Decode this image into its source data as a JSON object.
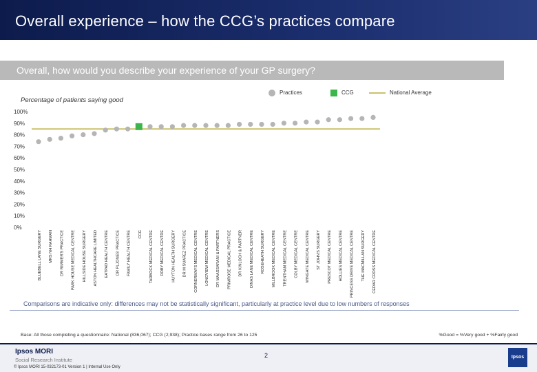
{
  "page": {
    "title": "Overall experience – how the CCG’s practices compare",
    "question": "Overall, how would you describe your experience of your GP surgery?",
    "subtitle": "Percentage of patients saying good",
    "comparisons_note": "Comparisons are indicative only: differences may not be statistically significant, particularly at practice level due to low numbers of responses",
    "base_note": "Base: All those completing a questionnaire: National (836,067); CCG (2,938); Practice bases range from 26 to 125",
    "good_definition": "%Good = %Very good + %Fairly good",
    "footer_logo": "Ipsos MORI",
    "footer_logo_sub": "Social Research Institute",
    "footer_copyright": "© Ipsos MORI 15-032173-01 Version 1 | Internal Use Only",
    "page_number": "2",
    "brand_badge": "Ipsos"
  },
  "legend": {
    "practices": "Practices",
    "ccg": "CCG",
    "national": "National Average"
  },
  "colors": {
    "practice": "#b5b5b5",
    "ccg": "#3cb54a",
    "national": "#c9c06a"
  },
  "chart_data": {
    "type": "scatter",
    "title": "Overall, how would you describe your experience of your GP surgery?",
    "ylabel": "Percentage of patients saying good",
    "ylim": [
      0,
      100
    ],
    "yticks": [
      0,
      10,
      20,
      30,
      40,
      50,
      60,
      70,
      80,
      90,
      100
    ],
    "national_average": 85,
    "categories": [
      "BLUEBELL LANE SURGERY",
      "MRS NH RAHMAN",
      "DR RIMMER'S PRACTICE",
      "PARK HOUSE MEDICAL CENTRE",
      "HILLSIDE HOUSE SURGERY",
      "ASTON HEALTHCARE LIMITED",
      "EATPAD HEALTH CENTRE",
      "DR PLJONES' PRACTICE",
      "FAMILY HEALTH CENTRE",
      "CCG",
      "TARBOCK MEDICAL CENTRE",
      "ROBY MEDICAL CENTRE",
      "HUYTON HEALTH SURGERY",
      "DR M SUAREZ PRACTICE",
      "CORNERWAYS MEDICAL CENTRE",
      "LONGVIEW MEDICAL CENTRE",
      "DR MAASSARANI & PARTNERS",
      "PRIMROSE MEDICAL PRACTICE",
      "DR KINLOCH & PARTNER",
      "DINAS LANE MEDICAL CENTRE",
      "ROSEHEATH SURGERY",
      "MILLBROOK MEDICAL CENTRE",
      "TRENTHAM MEDICAL CENTRE",
      "COLBY MEDICAL CENTRE",
      "WINGATE MEDICAL CENTRE",
      "ST JOHN'S SURGERY",
      "PRESCOT MEDICAL CENTRE",
      "HOLLIES MEDICAL CENTRE",
      "PRINCESS DRIVE MEDICAL CENTRE",
      "THE MACMILLAN SURGERY",
      "CEDAR CROSS MEDICAL CENTRE"
    ],
    "values": [
      74,
      76,
      77,
      79,
      80,
      81,
      84,
      85,
      85,
      87,
      87,
      87,
      87,
      88,
      88,
      88,
      88,
      88,
      89,
      89,
      89,
      89,
      90,
      90,
      91,
      91,
      93,
      93,
      94,
      94,
      95
    ],
    "ccg_category": "CCG"
  }
}
